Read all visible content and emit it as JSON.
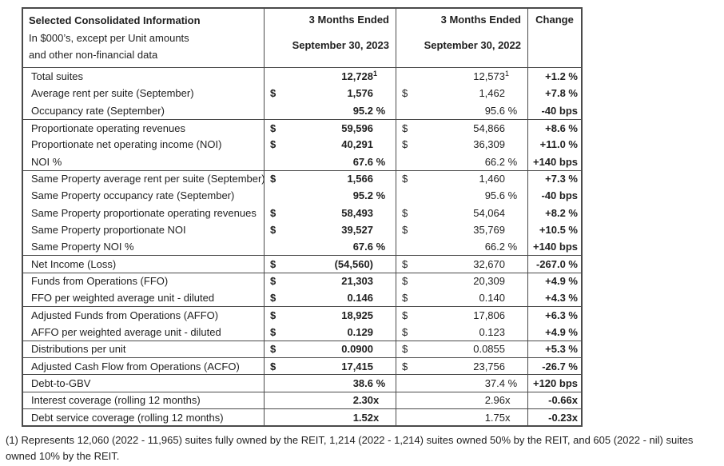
{
  "colors": {
    "text": "#1f1f1f",
    "border": "#4a4a4a",
    "background": "#ffffff"
  },
  "table": {
    "header": {
      "col1_lines": [
        "Selected Consolidated Information",
        "In $000’s, except per Unit amounts",
        "and other non-financial data"
      ],
      "col2_lines": [
        "3 Months Ended",
        "September 30, 2023"
      ],
      "col3_lines": [
        "3 Months Ended",
        "September 30, 2022"
      ],
      "col4_label": "Change"
    },
    "groups": [
      {
        "rows": [
          {
            "label": "Total suites",
            "v2023": {
              "prefix": "",
              "num": "12,728",
              "sup": "1",
              "suffix": ""
            },
            "v2022": {
              "prefix": "",
              "num": "12,573",
              "sup": "1",
              "suffix": ""
            },
            "change": "+1.2 %"
          },
          {
            "label": "Average rent per suite (September)",
            "v2023": {
              "prefix": "$",
              "num": "1,576",
              "sup": "",
              "suffix": ""
            },
            "v2022": {
              "prefix": "$",
              "num": "1,462",
              "sup": "",
              "suffix": ""
            },
            "change": "+7.8 %"
          },
          {
            "label": "Occupancy rate (September)",
            "v2023": {
              "prefix": "",
              "num": "95.2",
              "sup": "",
              "suffix": " %"
            },
            "v2022": {
              "prefix": "",
              "num": "95.6",
              "sup": "",
              "suffix": " %"
            },
            "change": "-40 bps"
          }
        ]
      },
      {
        "rows": [
          {
            "label": "Proportionate operating revenues",
            "v2023": {
              "prefix": "$",
              "num": "59,596",
              "sup": "",
              "suffix": ""
            },
            "v2022": {
              "prefix": "$",
              "num": "54,866",
              "sup": "",
              "suffix": ""
            },
            "change": "+8.6 %"
          },
          {
            "label": "Proportionate net operating income (NOI)",
            "v2023": {
              "prefix": "$",
              "num": "40,291",
              "sup": "",
              "suffix": ""
            },
            "v2022": {
              "prefix": "$",
              "num": "36,309",
              "sup": "",
              "suffix": ""
            },
            "change": "+11.0 %"
          },
          {
            "label": "NOI %",
            "v2023": {
              "prefix": "",
              "num": "67.6",
              "sup": "",
              "suffix": " %"
            },
            "v2022": {
              "prefix": "",
              "num": "66.2",
              "sup": "",
              "suffix": " %"
            },
            "change": "+140 bps"
          }
        ]
      },
      {
        "rows": [
          {
            "label": "Same Property average rent per suite (September)",
            "v2023": {
              "prefix": "$",
              "num": "1,566",
              "sup": "",
              "suffix": ""
            },
            "v2022": {
              "prefix": "$",
              "num": "1,460",
              "sup": "",
              "suffix": ""
            },
            "change": "+7.3 %"
          },
          {
            "label": "Same Property occupancy rate (September)",
            "v2023": {
              "prefix": "",
              "num": "95.2",
              "sup": "",
              "suffix": " %"
            },
            "v2022": {
              "prefix": "",
              "num": "95.6",
              "sup": "",
              "suffix": " %"
            },
            "change": "-40 bps"
          },
          {
            "label": "Same Property proportionate operating revenues",
            "v2023": {
              "prefix": "$",
              "num": "58,493",
              "sup": "",
              "suffix": ""
            },
            "v2022": {
              "prefix": "$",
              "num": "54,064",
              "sup": "",
              "suffix": ""
            },
            "change": "+8.2 %"
          },
          {
            "label": "Same Property proportionate NOI",
            "v2023": {
              "prefix": "$",
              "num": "39,527",
              "sup": "",
              "suffix": ""
            },
            "v2022": {
              "prefix": "$",
              "num": "35,769",
              "sup": "",
              "suffix": ""
            },
            "change": "+10.5 %"
          },
          {
            "label": "Same Property NOI %",
            "v2023": {
              "prefix": "",
              "num": "67.6",
              "sup": "",
              "suffix": " %"
            },
            "v2022": {
              "prefix": "",
              "num": "66.2",
              "sup": "",
              "suffix": " %"
            },
            "change": "+140 bps"
          }
        ]
      },
      {
        "rows": [
          {
            "label": "Net Income (Loss)",
            "v2023": {
              "prefix": "$",
              "num": "(54,560)",
              "sup": "",
              "suffix": ""
            },
            "v2022": {
              "prefix": "$",
              "num": "32,670",
              "sup": "",
              "suffix": ""
            },
            "change": "-267.0 %"
          }
        ]
      },
      {
        "rows": [
          {
            "label": "Funds from Operations (FFO)",
            "v2023": {
              "prefix": "$",
              "num": "21,303",
              "sup": "",
              "suffix": ""
            },
            "v2022": {
              "prefix": "$",
              "num": "20,309",
              "sup": "",
              "suffix": ""
            },
            "change": "+4.9 %"
          },
          {
            "label": "FFO per weighted average unit - diluted",
            "v2023": {
              "prefix": "$",
              "num": "0.146",
              "sup": "",
              "suffix": ""
            },
            "v2022": {
              "prefix": "$",
              "num": "0.140",
              "sup": "",
              "suffix": ""
            },
            "change": "+4.3 %"
          }
        ]
      },
      {
        "rows": [
          {
            "label": "Adjusted Funds from Operations (AFFO)",
            "v2023": {
              "prefix": "$",
              "num": "18,925",
              "sup": "",
              "suffix": ""
            },
            "v2022": {
              "prefix": "$",
              "num": "17,806",
              "sup": "",
              "suffix": ""
            },
            "change": "+6.3 %"
          },
          {
            "label": "AFFO per weighted average unit - diluted",
            "v2023": {
              "prefix": "$",
              "num": "0.129",
              "sup": "",
              "suffix": ""
            },
            "v2022": {
              "prefix": "$",
              "num": "0.123",
              "sup": "",
              "suffix": ""
            },
            "change": "+4.9 %"
          }
        ]
      },
      {
        "rows": [
          {
            "label": "Distributions per unit",
            "v2023": {
              "prefix": "$",
              "num": "0.0900",
              "sup": "",
              "suffix": ""
            },
            "v2022": {
              "prefix": "$",
              "num": "0.0855",
              "sup": "",
              "suffix": ""
            },
            "change": "+5.3 %"
          }
        ]
      },
      {
        "rows": [
          {
            "label": "Adjusted Cash Flow from Operations (ACFO)",
            "v2023": {
              "prefix": "$",
              "num": "17,415",
              "sup": "",
              "suffix": ""
            },
            "v2022": {
              "prefix": "$",
              "num": "23,756",
              "sup": "",
              "suffix": ""
            },
            "change": "-26.7 %"
          }
        ]
      },
      {
        "rows": [
          {
            "label": "Debt-to-GBV",
            "v2023": {
              "prefix": "",
              "num": "38.6",
              "sup": "",
              "suffix": " %"
            },
            "v2022": {
              "prefix": "",
              "num": "37.4",
              "sup": "",
              "suffix": " %"
            },
            "change": "+120 bps"
          }
        ]
      },
      {
        "rows": [
          {
            "label": "Interest coverage (rolling 12 months)",
            "v2023": {
              "prefix": "",
              "num": "2.30",
              "sup": "",
              "suffix": "x"
            },
            "v2022": {
              "prefix": "",
              "num": "2.96",
              "sup": "",
              "suffix": "x"
            },
            "change": "-0.66x"
          }
        ]
      },
      {
        "rows": [
          {
            "label": "Debt service coverage (rolling 12 months)",
            "v2023": {
              "prefix": "",
              "num": "1.52",
              "sup": "",
              "suffix": "x"
            },
            "v2022": {
              "prefix": "",
              "num": "1.75",
              "sup": "",
              "suffix": "x"
            },
            "change": "-0.23x"
          }
        ]
      }
    ]
  },
  "footnote": "(1) Represents 12,060 (2022 - 11,965) suites fully owned by the REIT, 1,214 (2022 - 1,214) suites owned 50% by the REIT, and 605 (2022 - nil) suites owned 10% by the REIT."
}
